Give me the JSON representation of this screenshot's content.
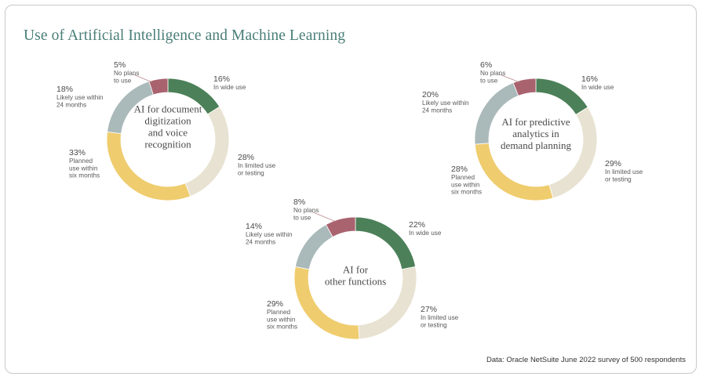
{
  "title": "Use of Artificial Intelligence and Machine Learning",
  "source": "Data: Oracle NetSuite June 2022 survey of 500 respondents",
  "colors": {
    "in_wide_use": "#4c8059",
    "in_limited_use": "#e8e2d2",
    "planned_six_months": "#efcc6e",
    "likely_24_months": "#aab9b9",
    "no_plans": "#a9636f"
  },
  "chart_data": [
    {
      "type": "pie",
      "style": "donut",
      "title": "AI for document digitization and voice recognition",
      "center_lines": [
        "AI for document",
        "digitization",
        "and voice",
        "recognition"
      ],
      "categories": [
        "In wide use",
        "In limited use or testing",
        "Planned use within six months",
        "Likely use within 24 months",
        "No plans to use"
      ],
      "values": [
        16,
        28,
        33,
        18,
        5
      ],
      "value_labels": [
        "16%",
        "28%",
        "33%",
        "18%",
        "5%"
      ],
      "label_lines": [
        [
          "In wide use"
        ],
        [
          "In limited use",
          "or testing"
        ],
        [
          "Planned",
          "use within",
          "six months"
        ],
        [
          "Likely use within",
          "24 months"
        ],
        [
          "No plans",
          "to use"
        ]
      ]
    },
    {
      "type": "pie",
      "style": "donut",
      "title": "AI for predictive analytics in demand planning",
      "center_lines": [
        "AI for predictive",
        "analytics in",
        "demand planning"
      ],
      "categories": [
        "In wide use",
        "In limited use or testing",
        "Planned use within six months",
        "Likely use within 24 months",
        "No plans to use"
      ],
      "values": [
        16,
        29,
        28,
        20,
        6
      ],
      "value_labels": [
        "16%",
        "29%",
        "28%",
        "20%",
        "6%"
      ],
      "label_lines": [
        [
          "In wide use"
        ],
        [
          "In limited use",
          "or testing"
        ],
        [
          "Planned",
          "use within",
          "six months"
        ],
        [
          "Likely use within",
          "24 months"
        ],
        [
          "No plans",
          "to use"
        ]
      ]
    },
    {
      "type": "pie",
      "style": "donut",
      "title": "AI for other functions",
      "center_lines": [
        "AI for",
        "other functions"
      ],
      "categories": [
        "In wide use",
        "In limited use or testing",
        "Planned use within six months",
        "Likely use within 24 months",
        "No plans to use"
      ],
      "values": [
        22,
        27,
        29,
        14,
        8
      ],
      "value_labels": [
        "22%",
        "27%",
        "29%",
        "14%",
        "8%"
      ],
      "label_lines": [
        [
          "In wide use"
        ],
        [
          "In limited use",
          "or testing"
        ],
        [
          "Planned",
          "use within",
          "six months"
        ],
        [
          "Likely use within",
          "24 months"
        ],
        [
          "No plans",
          "to use"
        ]
      ]
    }
  ]
}
